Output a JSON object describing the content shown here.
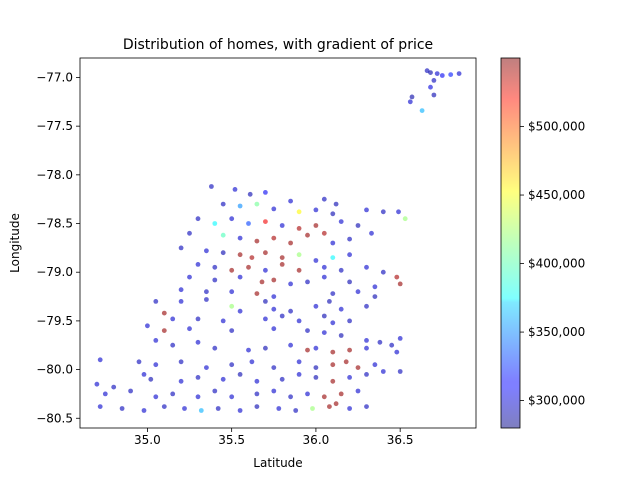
{
  "chart_data": {
    "type": "scatter",
    "title": "Distribution of homes, with gradient of price",
    "xlabel": "Latitude",
    "ylabel": "Longitude",
    "xlim": [
      34.6,
      36.95
    ],
    "ylim": [
      -80.6,
      -76.8
    ],
    "xticks": [
      35.0,
      35.5,
      36.0,
      36.5
    ],
    "xtick_labels": [
      "35.0",
      "35.5",
      "36.0",
      "36.5"
    ],
    "yticks": [
      -77.0,
      -77.5,
      -78.0,
      -78.5,
      -79.0,
      -79.5,
      -80.0,
      -80.5
    ],
    "ytick_labels": [
      "−77.0",
      "−77.5",
      "−78.0",
      "−78.5",
      "−79.0",
      "−79.5",
      "−80.0",
      "−80.5"
    ],
    "grid": false,
    "colorbar": {
      "range": [
        280000,
        550000
      ],
      "ticks": [
        300000,
        350000,
        400000,
        450000,
        500000
      ],
      "tick_labels": [
        "$300,000",
        "$350,000",
        "$400,000",
        "$450,000",
        "$500,000"
      ],
      "colormap": "jet",
      "alpha": 0.5
    },
    "series": [
      {
        "points": [
          [
            36.66,
            -76.93,
            295000
          ],
          [
            36.68,
            -76.95,
            290000
          ],
          [
            36.72,
            -76.96,
            300000
          ],
          [
            36.75,
            -76.98,
            310000
          ],
          [
            36.8,
            -76.97,
            320000
          ],
          [
            36.85,
            -76.96,
            300000
          ],
          [
            36.7,
            -77.03,
            295000
          ],
          [
            36.57,
            -77.2,
            290000
          ],
          [
            36.56,
            -77.25,
            300000
          ],
          [
            36.68,
            -77.1,
            305000
          ],
          [
            36.7,
            -77.18,
            292000
          ],
          [
            36.63,
            -77.34,
            360000
          ],
          [
            35.38,
            -78.12,
            295000
          ],
          [
            35.52,
            -78.15,
            300000
          ],
          [
            35.61,
            -78.2,
            292000
          ],
          [
            35.7,
            -78.18,
            310000
          ],
          [
            35.85,
            -78.27,
            300000
          ],
          [
            36.05,
            -78.25,
            295000
          ],
          [
            36.12,
            -78.3,
            292000
          ],
          [
            35.45,
            -78.3,
            295000
          ],
          [
            35.55,
            -78.32,
            350000
          ],
          [
            35.65,
            -78.3,
            410000
          ],
          [
            35.75,
            -78.35,
            300000
          ],
          [
            35.9,
            -78.38,
            450000
          ],
          [
            36.0,
            -78.36,
            300000
          ],
          [
            36.1,
            -78.4,
            292000
          ],
          [
            36.3,
            -78.36,
            300000
          ],
          [
            36.4,
            -78.38,
            295000
          ],
          [
            36.49,
            -78.38,
            300000
          ],
          [
            36.53,
            -78.45,
            420000
          ],
          [
            35.3,
            -78.45,
            295000
          ],
          [
            35.4,
            -78.5,
            380000
          ],
          [
            35.5,
            -78.45,
            300000
          ],
          [
            35.6,
            -78.5,
            330000
          ],
          [
            35.7,
            -78.48,
            520000
          ],
          [
            35.8,
            -78.52,
            300000
          ],
          [
            35.9,
            -78.55,
            540000
          ],
          [
            36.0,
            -78.52,
            545000
          ],
          [
            36.05,
            -78.6,
            540000
          ],
          [
            36.15,
            -78.48,
            300000
          ],
          [
            36.25,
            -78.52,
            292000
          ],
          [
            36.33,
            -78.6,
            300000
          ],
          [
            35.25,
            -78.6,
            295000
          ],
          [
            35.45,
            -78.62,
            400000
          ],
          [
            35.55,
            -78.65,
            300000
          ],
          [
            35.65,
            -78.68,
            545000
          ],
          [
            35.75,
            -78.65,
            540000
          ],
          [
            35.85,
            -78.7,
            545000
          ],
          [
            35.95,
            -78.62,
            545000
          ],
          [
            36.1,
            -78.7,
            300000
          ],
          [
            36.2,
            -78.66,
            295000
          ],
          [
            35.2,
            -78.75,
            295000
          ],
          [
            35.35,
            -78.78,
            300000
          ],
          [
            35.45,
            -78.8,
            292000
          ],
          [
            35.55,
            -78.82,
            545000
          ],
          [
            35.62,
            -78.85,
            540000
          ],
          [
            35.7,
            -78.8,
            545000
          ],
          [
            35.8,
            -78.85,
            545000
          ],
          [
            35.9,
            -78.82,
            420000
          ],
          [
            36.0,
            -78.88,
            300000
          ],
          [
            36.1,
            -78.85,
            380000
          ],
          [
            36.2,
            -78.82,
            300000
          ],
          [
            35.3,
            -78.92,
            300000
          ],
          [
            35.4,
            -78.95,
            295000
          ],
          [
            35.5,
            -78.98,
            545000
          ],
          [
            35.6,
            -78.95,
            545000
          ],
          [
            35.7,
            -78.98,
            300000
          ],
          [
            35.8,
            -78.92,
            545000
          ],
          [
            35.9,
            -78.98,
            545000
          ],
          [
            36.05,
            -78.95,
            300000
          ],
          [
            36.15,
            -78.98,
            295000
          ],
          [
            36.3,
            -78.95,
            300000
          ],
          [
            36.4,
            -79.0,
            295000
          ],
          [
            36.48,
            -79.05,
            540000
          ],
          [
            36.5,
            -79.12,
            545000
          ],
          [
            35.25,
            -79.05,
            300000
          ],
          [
            35.4,
            -79.08,
            295000
          ],
          [
            35.55,
            -79.05,
            300000
          ],
          [
            35.68,
            -79.1,
            545000
          ],
          [
            35.75,
            -79.08,
            545000
          ],
          [
            35.85,
            -79.12,
            300000
          ],
          [
            35.95,
            -79.1,
            295000
          ],
          [
            36.05,
            -79.05,
            300000
          ],
          [
            36.2,
            -79.1,
            292000
          ],
          [
            36.35,
            -79.15,
            300000
          ],
          [
            35.2,
            -79.18,
            300000
          ],
          [
            35.35,
            -79.2,
            295000
          ],
          [
            35.5,
            -79.2,
            300000
          ],
          [
            35.65,
            -79.22,
            545000
          ],
          [
            35.75,
            -79.25,
            300000
          ],
          [
            36.1,
            -79.22,
            295000
          ],
          [
            36.25,
            -79.2,
            300000
          ],
          [
            36.35,
            -79.25,
            292000
          ],
          [
            35.05,
            -79.3,
            295000
          ],
          [
            35.2,
            -79.3,
            300000
          ],
          [
            35.35,
            -79.28,
            295000
          ],
          [
            35.5,
            -79.35,
            420000
          ],
          [
            35.55,
            -79.4,
            300000
          ],
          [
            35.7,
            -79.3,
            292000
          ],
          [
            35.75,
            -79.38,
            300000
          ],
          [
            35.85,
            -79.4,
            295000
          ],
          [
            36.0,
            -79.35,
            300000
          ],
          [
            36.08,
            -79.3,
            292000
          ],
          [
            36.15,
            -79.38,
            300000
          ],
          [
            36.3,
            -79.35,
            295000
          ],
          [
            35.1,
            -79.42,
            545000
          ],
          [
            35.15,
            -79.48,
            300000
          ],
          [
            35.3,
            -79.48,
            295000
          ],
          [
            35.45,
            -79.5,
            300000
          ],
          [
            35.7,
            -79.48,
            300000
          ],
          [
            35.8,
            -79.45,
            295000
          ],
          [
            35.9,
            -79.5,
            300000
          ],
          [
            36.05,
            -79.45,
            292000
          ],
          [
            36.1,
            -79.52,
            300000
          ],
          [
            36.2,
            -79.5,
            295000
          ],
          [
            35.0,
            -79.55,
            300000
          ],
          [
            35.1,
            -79.6,
            545000
          ],
          [
            35.25,
            -79.58,
            300000
          ],
          [
            35.5,
            -79.6,
            295000
          ],
          [
            35.75,
            -79.58,
            300000
          ],
          [
            35.95,
            -79.6,
            295000
          ],
          [
            36.05,
            -79.62,
            300000
          ],
          [
            36.15,
            -79.65,
            292000
          ],
          [
            36.3,
            -79.7,
            300000
          ],
          [
            36.38,
            -79.72,
            295000
          ],
          [
            36.5,
            -79.68,
            300000
          ],
          [
            35.05,
            -79.7,
            300000
          ],
          [
            35.15,
            -79.75,
            295000
          ],
          [
            35.3,
            -79.72,
            300000
          ],
          [
            35.4,
            -79.78,
            295000
          ],
          [
            35.6,
            -79.8,
            300000
          ],
          [
            35.7,
            -79.78,
            292000
          ],
          [
            35.85,
            -79.75,
            300000
          ],
          [
            35.95,
            -79.8,
            545000
          ],
          [
            36.0,
            -79.78,
            300000
          ],
          [
            36.1,
            -79.82,
            545000
          ],
          [
            36.2,
            -79.8,
            545000
          ],
          [
            36.3,
            -79.78,
            300000
          ],
          [
            36.45,
            -79.75,
            295000
          ],
          [
            36.48,
            -79.82,
            300000
          ],
          [
            34.72,
            -79.9,
            300000
          ],
          [
            34.95,
            -79.92,
            295000
          ],
          [
            35.05,
            -79.95,
            300000
          ],
          [
            35.2,
            -79.92,
            295000
          ],
          [
            35.35,
            -79.98,
            300000
          ],
          [
            35.5,
            -79.95,
            295000
          ],
          [
            35.62,
            -79.92,
            300000
          ],
          [
            35.75,
            -79.98,
            295000
          ],
          [
            35.9,
            -79.92,
            300000
          ],
          [
            36.0,
            -79.98,
            292000
          ],
          [
            36.1,
            -79.95,
            545000
          ],
          [
            36.18,
            -79.92,
            545000
          ],
          [
            36.25,
            -79.98,
            545000
          ],
          [
            36.35,
            -79.95,
            300000
          ],
          [
            36.5,
            -80.02,
            295000
          ],
          [
            34.7,
            -80.15,
            300000
          ],
          [
            34.8,
            -80.18,
            295000
          ],
          [
            34.98,
            -80.05,
            300000
          ],
          [
            35.02,
            -80.1,
            292000
          ],
          [
            35.2,
            -80.12,
            300000
          ],
          [
            35.3,
            -80.08,
            295000
          ],
          [
            35.45,
            -80.1,
            300000
          ],
          [
            35.55,
            -80.05,
            292000
          ],
          [
            35.65,
            -80.12,
            300000
          ],
          [
            35.8,
            -80.1,
            295000
          ],
          [
            35.9,
            -80.05,
            300000
          ],
          [
            36.0,
            -80.08,
            292000
          ],
          [
            36.1,
            -80.12,
            545000
          ],
          [
            36.2,
            -80.08,
            300000
          ],
          [
            36.3,
            -80.05,
            295000
          ],
          [
            36.4,
            -80.02,
            300000
          ],
          [
            34.75,
            -80.25,
            300000
          ],
          [
            34.9,
            -80.22,
            295000
          ],
          [
            35.05,
            -80.28,
            300000
          ],
          [
            35.15,
            -80.25,
            295000
          ],
          [
            35.3,
            -80.28,
            300000
          ],
          [
            35.4,
            -80.22,
            295000
          ],
          [
            35.5,
            -80.28,
            300000
          ],
          [
            35.65,
            -80.25,
            295000
          ],
          [
            35.75,
            -80.22,
            300000
          ],
          [
            35.85,
            -80.28,
            295000
          ],
          [
            35.95,
            -80.25,
            300000
          ],
          [
            36.05,
            -80.28,
            545000
          ],
          [
            36.15,
            -80.25,
            545000
          ],
          [
            36.25,
            -80.22,
            300000
          ],
          [
            34.72,
            -80.38,
            300000
          ],
          [
            34.85,
            -80.4,
            295000
          ],
          [
            34.98,
            -80.42,
            300000
          ],
          [
            35.1,
            -80.38,
            295000
          ],
          [
            35.22,
            -80.4,
            300000
          ],
          [
            35.32,
            -80.42,
            360000
          ],
          [
            35.42,
            -80.4,
            295000
          ],
          [
            35.55,
            -80.42,
            300000
          ],
          [
            35.65,
            -80.38,
            292000
          ],
          [
            35.78,
            -80.4,
            300000
          ],
          [
            35.88,
            -80.42,
            295000
          ],
          [
            35.98,
            -80.4,
            420000
          ],
          [
            36.08,
            -80.38,
            545000
          ],
          [
            36.12,
            -80.35,
            545000
          ],
          [
            36.2,
            -80.4,
            300000
          ],
          [
            36.3,
            -80.38,
            295000
          ]
        ]
      }
    ]
  }
}
